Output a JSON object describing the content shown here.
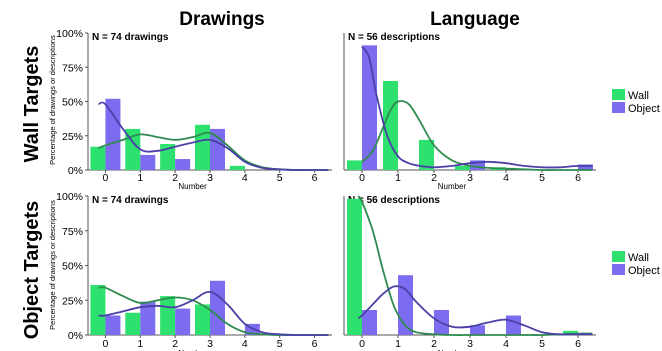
{
  "column_titles": [
    "Drawings",
    "Language"
  ],
  "row_titles": [
    "Wall Targets",
    "Object Targets"
  ],
  "legend": {
    "items": [
      {
        "label": "Wall",
        "color": "#2ee06e"
      },
      {
        "label": "Object",
        "color": "#7b6cf0"
      }
    ]
  },
  "colors": {
    "wall": "#2ee06e",
    "object": "#7b6cf0",
    "wall_line": "#2e8a4e",
    "object_line": "#4a40a6"
  },
  "chart_data": [
    {
      "id": "drawings-wall",
      "type": "bar",
      "panel_label": "N = 74 drawings",
      "xlabel": "Number",
      "ylabel": "Percentage of drawings or descriptions",
      "x_ticks": [
        0,
        1,
        2,
        3,
        4,
        5,
        6
      ],
      "y_ticks": [
        "0%",
        "25%",
        "50%",
        "75%",
        "100%"
      ],
      "ylim": [
        0,
        100
      ],
      "series": [
        {
          "name": "Wall",
          "x": [
            0,
            1,
            2,
            3,
            4
          ],
          "values": [
            17,
            30,
            19,
            33,
            3
          ]
        },
        {
          "name": "Object",
          "x": [
            0,
            1,
            2,
            3
          ],
          "values": [
            52,
            11,
            8,
            30
          ]
        }
      ],
      "curves": [
        {
          "name": "Wall",
          "x": [
            -0.2,
            0,
            0.5,
            1,
            1.5,
            2,
            2.5,
            3,
            3.5,
            4,
            4.5,
            5,
            5.5,
            6,
            6.4
          ],
          "y": [
            16,
            18,
            22,
            26,
            24,
            22,
            24,
            27,
            18,
            7,
            2,
            0.5,
            0,
            0,
            0
          ]
        },
        {
          "name": "Object",
          "x": [
            -0.2,
            0,
            0.5,
            1,
            1.5,
            2,
            2.5,
            3,
            3.5,
            4,
            4.5,
            5,
            5.5,
            6,
            6.4
          ],
          "y": [
            48,
            48,
            30,
            15,
            14,
            17,
            20,
            22,
            16,
            6,
            1.5,
            0.5,
            0,
            0,
            0
          ]
        }
      ]
    },
    {
      "id": "language-wall",
      "type": "bar",
      "panel_label": "N = 56 descriptions",
      "xlabel": "Number",
      "ylabel": "",
      "x_ticks": [
        0,
        1,
        2,
        3,
        4,
        5,
        6
      ],
      "y_ticks": [],
      "ylim": [
        0,
        100
      ],
      "series": [
        {
          "name": "Wall",
          "x": [
            0,
            1,
            2,
            3,
            4
          ],
          "values": [
            7,
            65,
            22,
            3,
            2
          ]
        },
        {
          "name": "Object",
          "x": [
            0,
            3,
            6
          ],
          "values": [
            91,
            7,
            4
          ]
        }
      ],
      "curves": [
        {
          "name": "Wall",
          "x": [
            0,
            0.3,
            0.6,
            0.8,
            1,
            1.3,
            1.6,
            2,
            2.5,
            3,
            3.5,
            4,
            4.5,
            5,
            5.5,
            6,
            6.4
          ],
          "y": [
            6,
            14,
            32,
            44,
            50,
            48,
            36,
            18,
            7,
            3,
            1.5,
            1,
            0.5,
            0,
            0,
            0,
            0
          ]
        },
        {
          "name": "Object",
          "x": [
            0,
            0.2,
            0.4,
            0.7,
            1,
            1.3,
            1.6,
            2,
            2.5,
            3,
            3.5,
            4,
            4.5,
            5,
            5.5,
            6,
            6.4
          ],
          "y": [
            90,
            82,
            55,
            25,
            10,
            5,
            3,
            2,
            3,
            5,
            6,
            5,
            3,
            2,
            2,
            3,
            3
          ]
        }
      ]
    },
    {
      "id": "drawings-object",
      "type": "bar",
      "panel_label": "N = 74 drawings",
      "xlabel": "Number",
      "ylabel": "Percentage of drawings or descriptions",
      "x_ticks": [
        0,
        1,
        2,
        3,
        4,
        5,
        6
      ],
      "y_ticks": [
        "0%",
        "25%",
        "50%",
        "75%",
        "100%"
      ],
      "ylim": [
        0,
        100
      ],
      "series": [
        {
          "name": "Wall",
          "x": [
            0,
            1,
            2,
            3
          ],
          "values": [
            36,
            16,
            28,
            22
          ]
        },
        {
          "name": "Object",
          "x": [
            0,
            1,
            2,
            3,
            4
          ],
          "values": [
            14,
            24,
            19,
            39,
            8
          ]
        }
      ],
      "curves": [
        {
          "name": "Wall",
          "x": [
            -0.2,
            0,
            0.5,
            1,
            1.5,
            2,
            2.5,
            3,
            3.5,
            4,
            4.5,
            5,
            5.5,
            6,
            6.4
          ],
          "y": [
            34,
            34,
            28,
            23,
            25,
            27,
            25,
            18,
            8,
            2,
            0.5,
            0,
            0,
            0,
            0
          ]
        },
        {
          "name": "Object",
          "x": [
            -0.2,
            0,
            0.5,
            1,
            1.5,
            2,
            2.5,
            3,
            3.5,
            4,
            4.5,
            5,
            5.5,
            6,
            6.4
          ],
          "y": [
            14,
            14,
            17,
            20,
            21,
            20,
            25,
            31,
            22,
            8,
            2,
            0.5,
            0,
            0,
            0
          ]
        }
      ]
    },
    {
      "id": "language-object",
      "type": "bar",
      "panel_label": "N = 56 descriptions",
      "xlabel": "Number",
      "ylabel": "",
      "x_ticks": [
        0,
        1,
        2,
        3,
        4,
        5,
        6
      ],
      "y_ticks": [],
      "ylim": [
        0,
        100
      ],
      "series": [
        {
          "name": "Wall",
          "x": [
            0,
            6
          ],
          "values": [
            98,
            3
          ]
        },
        {
          "name": "Object",
          "x": [
            0,
            1,
            2,
            3,
            4
          ],
          "values": [
            18,
            43,
            18,
            7,
            14
          ]
        }
      ],
      "curves": [
        {
          "name": "Wall",
          "x": [
            -0.1,
            0,
            0.3,
            0.6,
            0.9,
            1.2,
            1.5,
            2,
            2.5,
            3,
            3.5,
            4,
            4.5,
            5,
            5.5,
            6,
            6.4
          ],
          "y": [
            100,
            96,
            75,
            45,
            20,
            7,
            2,
            0.5,
            0,
            0,
            0,
            0,
            0,
            0,
            0.5,
            1,
            1
          ]
        },
        {
          "name": "Object",
          "x": [
            -0.1,
            0,
            0.3,
            0.6,
            0.9,
            1.2,
            1.5,
            2,
            2.5,
            3,
            3.5,
            4,
            4.5,
            5,
            5.5,
            6,
            6.4
          ],
          "y": [
            12,
            14,
            22,
            30,
            35,
            33,
            24,
            12,
            6,
            6,
            9,
            11,
            7,
            2,
            0.5,
            0.5,
            0.5
          ]
        }
      ]
    }
  ]
}
